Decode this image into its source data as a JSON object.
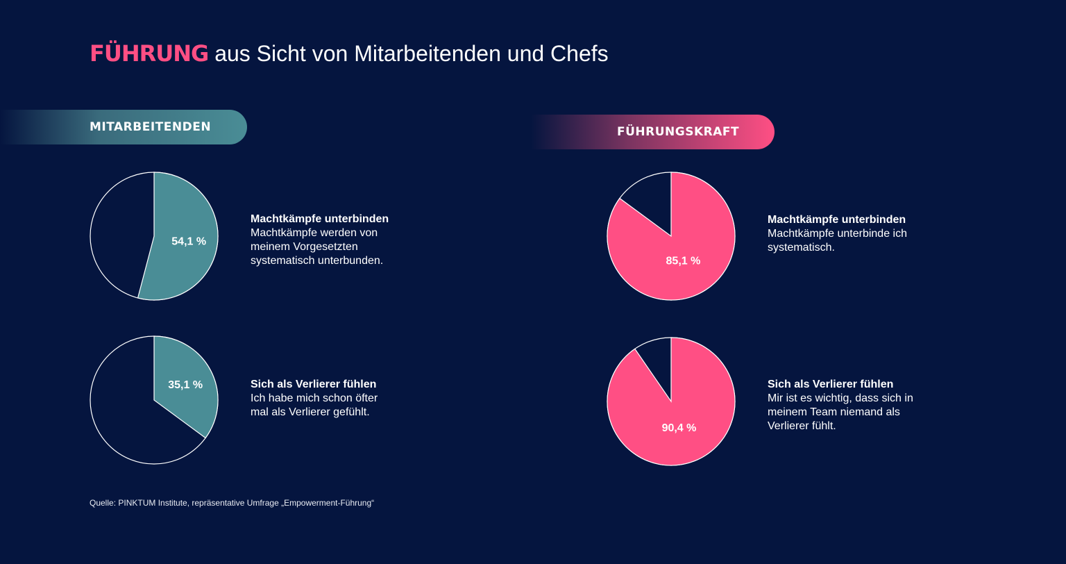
{
  "title": {
    "highlight": "FÜHRUNG",
    "rest": " aus Sicht von Mitarbeitenden und Chefs"
  },
  "groups": {
    "left": "MITARBEITENDEN",
    "right": "FÜHRUNGSKRAFT"
  },
  "colors": {
    "background": "#05153f",
    "employees": "#4a8d96",
    "managers": "#ff4f84"
  },
  "chart_data": [
    {
      "type": "pie",
      "group": "MITARBEITENDEN",
      "value": 54.1,
      "label": "54,1 %",
      "heading": "Machtkämpfe unterbinden",
      "text": "Machtkämpfe werden von meinem Vorgesetzten systematisch unterbunden.",
      "color": "#4a8d96"
    },
    {
      "type": "pie",
      "group": "MITARBEITENDEN",
      "value": 35.1,
      "label": "35,1 %",
      "heading": "Sich als Verlierer fühlen",
      "text": "Ich habe mich schon öfter mal als Verlierer gefühlt.",
      "color": "#4a8d96"
    },
    {
      "type": "pie",
      "group": "FÜHRUNGSKRAFT",
      "value": 85.1,
      "label": "85,1 %",
      "heading": "Machtkämpfe unterbinden",
      "text": "Machtkämpfe unterbinde ich systematisch.",
      "color": "#ff4f84"
    },
    {
      "type": "pie",
      "group": "FÜHRUNGSKRAFT",
      "value": 90.4,
      "label": "90,4 %",
      "heading": "Sich als Verlierer fühlen",
      "text": "Mir ist es wichtig, dass sich in meinem Team niemand als Verlierer fühlt.",
      "color": "#ff4f84"
    }
  ],
  "source": "Quelle: PINKTUM Institute, repräsentative Umfrage „Empowerment-Führung“"
}
